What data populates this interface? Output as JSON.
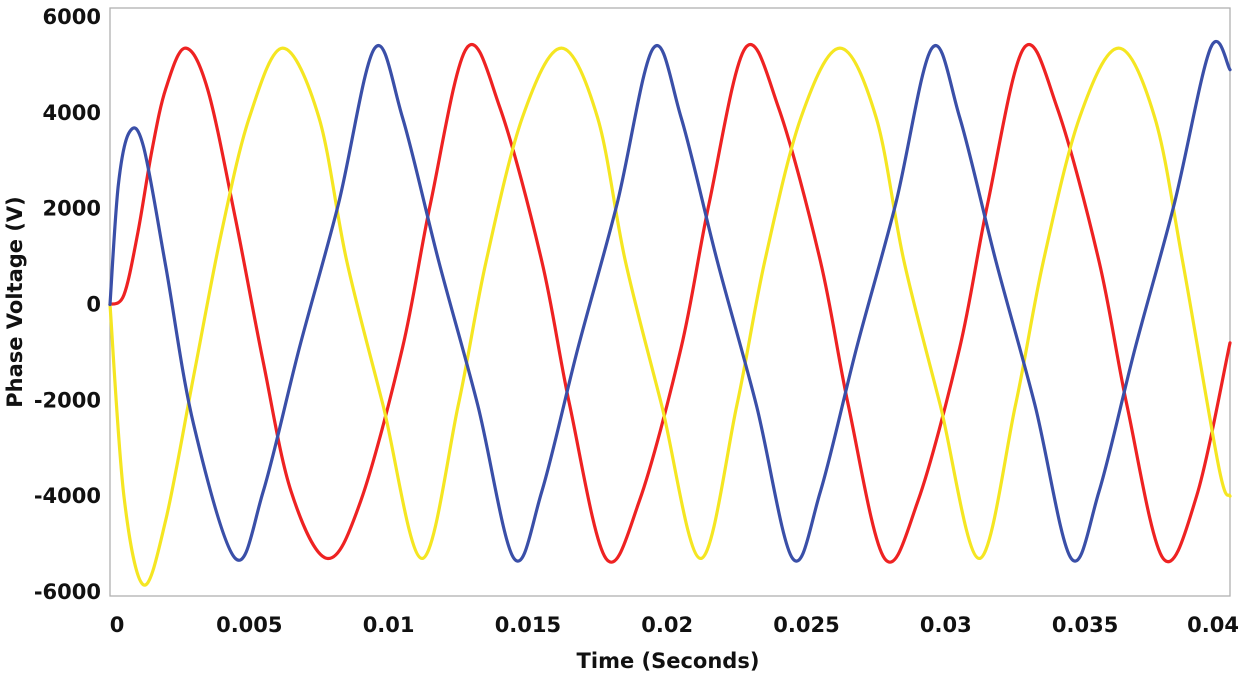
{
  "chart_data": {
    "type": "line",
    "xlabel": "Time (Seconds)",
    "ylabel": "Phase Voltage (V)",
    "xlim": [
      0,
      0.0402
    ],
    "ylim": [
      -6000,
      6000
    ],
    "x_ticks": [
      0,
      0.005,
      0.01,
      0.015,
      0.02,
      0.025,
      0.03,
      0.035,
      0.04
    ],
    "x_tick_labels": [
      "0",
      "0.005",
      "0.01",
      "0.015",
      "0.02",
      "0.025",
      "0.03",
      "0.035",
      "0.04"
    ],
    "y_ticks": [
      6000,
      4000,
      2000,
      0,
      -2000,
      -4000,
      -6000
    ],
    "y_tick_labels": [
      "6000",
      "4000",
      "2000",
      "0",
      "-2000",
      "-4000",
      "-6000"
    ],
    "grid": false,
    "legend": "none",
    "series": [
      {
        "color": "#ee2222",
        "x": [
          0,
          0.0005,
          0.001,
          0.0015,
          0.002,
          0.0027,
          0.0035,
          0.0045,
          0.0055,
          0.0065,
          0.0078,
          0.009,
          0.0105,
          0.0115,
          0.0128,
          0.014,
          0.0155,
          0.0165,
          0.0178,
          0.019,
          0.0205,
          0.0215,
          0.0228,
          0.024,
          0.0255,
          0.0265,
          0.0278,
          0.029,
          0.0305,
          0.0315,
          0.0328,
          0.034,
          0.0355,
          0.0365,
          0.0378,
          0.039,
          0.0402
        ],
        "y": [
          0,
          200,
          1500,
          3200,
          4500,
          5350,
          4500,
          1800,
          -1200,
          -3900,
          -5300,
          -4100,
          -900,
          2100,
          5350,
          4100,
          900,
          -2100,
          -5300,
          -4100,
          -900,
          2100,
          5350,
          4100,
          900,
          -2100,
          -5300,
          -4100,
          -900,
          2100,
          5350,
          4100,
          900,
          -2100,
          -5300,
          -4000,
          -800
        ]
      },
      {
        "color": "#f5e622",
        "x": [
          0,
          0.0005,
          0.0012,
          0.002,
          0.003,
          0.004,
          0.005,
          0.0062,
          0.0075,
          0.0085,
          0.0098,
          0.0112,
          0.0125,
          0.0135,
          0.0148,
          0.0162,
          0.0175,
          0.0185,
          0.0198,
          0.0212,
          0.0225,
          0.0235,
          0.0248,
          0.0262,
          0.0275,
          0.0285,
          0.0298,
          0.0312,
          0.0325,
          0.0335,
          0.0348,
          0.0362,
          0.0375,
          0.0385,
          0.0398,
          0.0402
        ],
        "y": [
          0,
          -4000,
          -5850,
          -4500,
          -1500,
          1500,
          3900,
          5350,
          3900,
          900,
          -2100,
          -5300,
          -2100,
          900,
          3900,
          5350,
          3900,
          900,
          -2100,
          -5300,
          -2100,
          900,
          3900,
          5350,
          3900,
          900,
          -2100,
          -5300,
          -2100,
          900,
          3900,
          5350,
          3900,
          900,
          -3400,
          -4000
        ]
      },
      {
        "color": "#3a4fa8",
        "x": [
          0,
          0.0003,
          0.0007,
          0.0012,
          0.002,
          0.003,
          0.0045,
          0.0055,
          0.0068,
          0.0082,
          0.0095,
          0.0105,
          0.0118,
          0.0132,
          0.0145,
          0.0155,
          0.0168,
          0.0182,
          0.0195,
          0.0205,
          0.0218,
          0.0232,
          0.0245,
          0.0255,
          0.0268,
          0.0282,
          0.0295,
          0.0305,
          0.0318,
          0.0332,
          0.0345,
          0.0355,
          0.0368,
          0.0382,
          0.0395,
          0.0402
        ],
        "y": [
          0,
          2500,
          3600,
          3300,
          800,
          -2500,
          -5300,
          -3900,
          -900,
          2100,
          5350,
          3900,
          900,
          -2100,
          -5300,
          -3900,
          -900,
          2100,
          5350,
          3900,
          900,
          -2100,
          -5300,
          -3900,
          -900,
          2100,
          5350,
          3900,
          900,
          -2100,
          -5300,
          -3900,
          -900,
          2100,
          5350,
          4900
        ]
      }
    ]
  }
}
